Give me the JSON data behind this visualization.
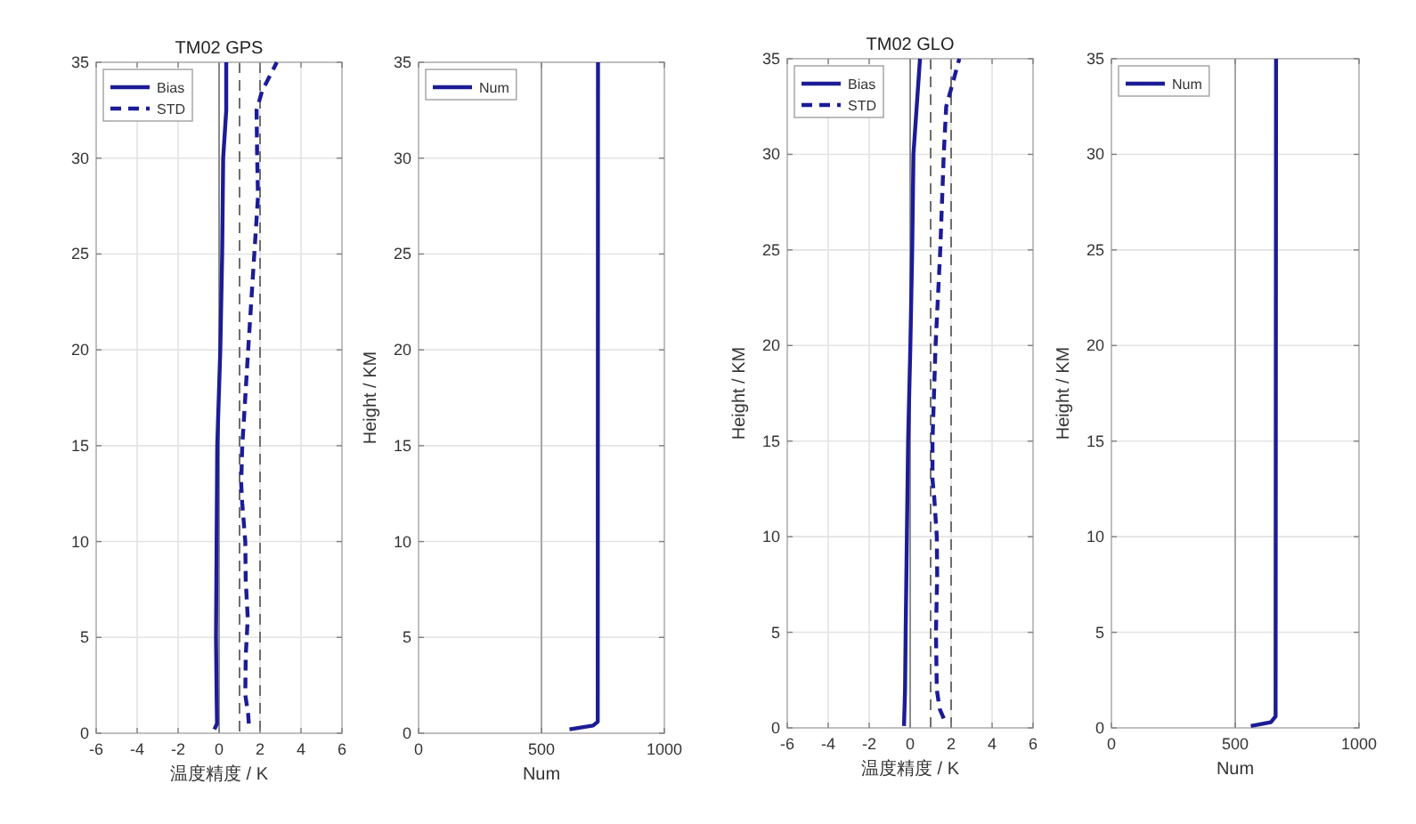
{
  "chart_data": [
    {
      "type": "line",
      "title": "TM02 GPS",
      "xlabel": "温度精度 / K",
      "xlim": [
        -6,
        6
      ],
      "xticks": [
        -6,
        -4,
        -2,
        0,
        2,
        4,
        6
      ],
      "ylim": [
        0,
        35
      ],
      "yticks": [
        0,
        5,
        10,
        15,
        20,
        25,
        30,
        35
      ],
      "grid": true,
      "legend": "top left",
      "ref_lines": [
        {
          "axis": "x",
          "value": 0,
          "color": "#8c8c8c",
          "line_style": "solid"
        },
        {
          "axis": "x",
          "value": 1,
          "color": "#6e6e6e",
          "line_style": "dashed"
        },
        {
          "axis": "x",
          "value": 2,
          "color": "#6e6e6e",
          "line_style": "dashed"
        }
      ],
      "series": [
        {
          "name": "Bias",
          "color": "#1c1c96",
          "line_style": "solid",
          "x": [
            -0.23,
            -0.1,
            -0.12,
            -0.15,
            -0.12,
            -0.09,
            -0.06,
            0.06,
            0.15,
            0.2,
            0.35,
            0.35
          ],
          "values": [
            0.2,
            0.5,
            2,
            5,
            10,
            15,
            16,
            20,
            25,
            30,
            32.5,
            35
          ]
        },
        {
          "name": "STD",
          "color": "#1c1c96",
          "line_style": "dashed",
          "x": [
            1.45,
            1.42,
            1.28,
            1.3,
            1.4,
            1.3,
            1.28,
            1.13,
            1.08,
            1.13,
            1.25,
            1.42,
            1.72,
            1.9,
            1.86,
            1.83,
            2.1,
            2.82
          ],
          "values": [
            0.5,
            1,
            2,
            4,
            6,
            8,
            10,
            12,
            13,
            15,
            17,
            20,
            25,
            28,
            30,
            32.5,
            33.5,
            35
          ]
        }
      ]
    },
    {
      "type": "line",
      "xlabel": "Num",
      "ylabel": "Height / KM",
      "xlim": [
        0,
        1000
      ],
      "xticks": [
        0,
        500,
        1000
      ],
      "ylim": [
        0,
        35
      ],
      "yticks": [
        0,
        5,
        10,
        15,
        20,
        25,
        30,
        35
      ],
      "grid": true,
      "legend": "top left",
      "ref_lines": [
        {
          "axis": "x",
          "value": 500,
          "color": "#a6a6a6",
          "line_style": "solid"
        }
      ],
      "series": [
        {
          "name": "Num",
          "color": "#1c1c96",
          "line_style": "solid",
          "x": [
            614,
            710,
            729,
            730
          ],
          "values": [
            0.2,
            0.4,
            0.6,
            35
          ]
        }
      ]
    },
    {
      "type": "line",
      "title": "TM02 GLO",
      "xlabel": "温度精度 / K",
      "ylabel": "Height / KM",
      "xlim": [
        -6,
        6
      ],
      "xticks": [
        -6,
        -4,
        -2,
        0,
        2,
        4,
        6
      ],
      "ylim": [
        0,
        35
      ],
      "yticks": [
        0,
        5,
        10,
        15,
        20,
        25,
        30,
        35
      ],
      "grid": true,
      "legend": "top left",
      "ref_lines": [
        {
          "axis": "x",
          "value": 0,
          "color": "#8c8c8c",
          "line_style": "solid"
        },
        {
          "axis": "x",
          "value": 1,
          "color": "#6e6e6e",
          "line_style": "dashed"
        },
        {
          "axis": "x",
          "value": 2,
          "color": "#6e6e6e",
          "line_style": "dashed"
        }
      ],
      "series": [
        {
          "name": "Bias",
          "color": "#1c1c96",
          "line_style": "solid",
          "x": [
            -0.3,
            -0.25,
            -0.22,
            -0.16,
            -0.1,
            0.01,
            0.1,
            0.16,
            0.48
          ],
          "values": [
            0.1,
            2,
            5,
            10,
            15,
            20,
            25,
            30,
            35
          ]
        },
        {
          "name": "STD",
          "color": "#1c1c96",
          "line_style": "dashed",
          "x": [
            1.64,
            1.44,
            1.3,
            1.26,
            1.32,
            1.3,
            1.18,
            1.09,
            1.09,
            1.15,
            1.24,
            1.47,
            1.64,
            1.76,
            2.02,
            2.4
          ],
          "values": [
            0.5,
            1,
            2,
            5,
            8,
            10,
            12,
            13,
            15,
            17,
            20,
            25,
            30,
            32.5,
            33.5,
            35
          ]
        }
      ]
    },
    {
      "type": "line",
      "xlabel": "Num",
      "ylabel": "Height / KM",
      "xlim": [
        0,
        1000
      ],
      "xticks": [
        0,
        500,
        1000
      ],
      "ylim": [
        0,
        35
      ],
      "yticks": [
        0,
        5,
        10,
        15,
        20,
        25,
        30,
        35
      ],
      "grid": true,
      "legend": "top left",
      "ref_lines": [
        {
          "axis": "x",
          "value": 500,
          "color": "#a6a6a6",
          "line_style": "solid"
        }
      ],
      "series": [
        {
          "name": "Num",
          "color": "#1c1c96",
          "line_style": "solid",
          "x": [
            563,
            644,
            663,
            665
          ],
          "values": [
            0.1,
            0.3,
            0.6,
            35
          ]
        }
      ]
    }
  ]
}
